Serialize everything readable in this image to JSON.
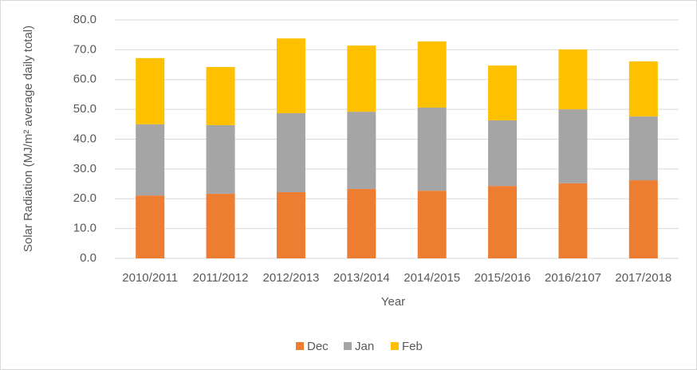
{
  "chart_data": {
    "type": "stacked_bar",
    "x_label": "Year",
    "y_label": "Solar Radiation (MJ/m² average daily total)",
    "categories": [
      "2010/2011",
      "2011/2012",
      "2012/2013",
      "2013/2014",
      "2014/2015",
      "2015/2016",
      "2016/2107",
      "2017/2018"
    ],
    "series": [
      {
        "name": "Dec",
        "color": "#ed7d31",
        "values": [
          21.1,
          21.7,
          22.2,
          23.3,
          22.7,
          24.3,
          25.2,
          26.2
        ]
      },
      {
        "name": "Jan",
        "color": "#a5a5a5",
        "values": [
          23.9,
          23.0,
          26.5,
          25.9,
          27.9,
          22.0,
          24.8,
          21.4
        ]
      },
      {
        "name": "Feb",
        "color": "#ffc000",
        "values": [
          22.2,
          19.5,
          25.1,
          22.2,
          22.2,
          18.4,
          20.1,
          18.5
        ]
      }
    ],
    "ylim": [
      0,
      80
    ],
    "yticks": [
      {
        "value": 0,
        "label": "0.0"
      },
      {
        "value": 10,
        "label": "10.0"
      },
      {
        "value": 20,
        "label": "20.0"
      },
      {
        "value": 30,
        "label": "30.0"
      },
      {
        "value": 40,
        "label": "40.0"
      },
      {
        "value": 50,
        "label": "50.0"
      },
      {
        "value": 60,
        "label": "60.0"
      },
      {
        "value": 70,
        "label": "70.0"
      },
      {
        "value": 80,
        "label": "80.0"
      }
    ],
    "grid": true,
    "legend": "bottom"
  }
}
